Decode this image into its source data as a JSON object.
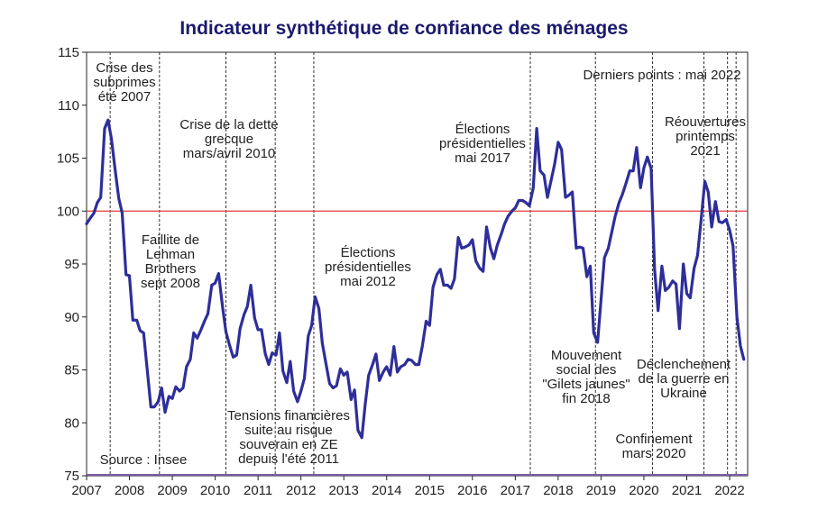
{
  "chart_data": {
    "type": "line",
    "title": "Indicateur synthétique de confiance des ménages",
    "xlabel": "",
    "ylabel": "",
    "xlim": [
      2007.0,
      2022.42
    ],
    "ylim": [
      75,
      115
    ],
    "y_ticks": [
      "75",
      "80",
      "85",
      "90",
      "95",
      "100",
      "105",
      "110",
      "115"
    ],
    "x_ticks": [
      "2007",
      "2008",
      "2009",
      "2010",
      "2011",
      "2012",
      "2013",
      "2014",
      "2015",
      "2016",
      "2017",
      "2018",
      "2019",
      "2020",
      "2021",
      "2022"
    ],
    "grid": false,
    "reference_line": {
      "y": 100,
      "color": "#e03c3c"
    },
    "series": [
      {
        "color": "#2e2e9a",
        "x": [
          2007.0,
          2007.08,
          2007.17,
          2007.25,
          2007.33,
          2007.42,
          2007.5,
          2007.58,
          2007.67,
          2007.75,
          2007.83,
          2007.92,
          2008.0,
          2008.08,
          2008.17,
          2008.25,
          2008.33,
          2008.42,
          2008.5,
          2008.58,
          2008.67,
          2008.75,
          2008.83,
          2008.92,
          2009.0,
          2009.08,
          2009.17,
          2009.25,
          2009.33,
          2009.42,
          2009.5,
          2009.58,
          2009.67,
          2009.75,
          2009.83,
          2009.92,
          2010.0,
          2010.08,
          2010.17,
          2010.25,
          2010.33,
          2010.42,
          2010.5,
          2010.58,
          2010.67,
          2010.75,
          2010.83,
          2010.92,
          2011.0,
          2011.08,
          2011.17,
          2011.25,
          2011.33,
          2011.42,
          2011.5,
          2011.58,
          2011.67,
          2011.75,
          2011.83,
          2011.92,
          2012.0,
          2012.08,
          2012.17,
          2012.25,
          2012.33,
          2012.42,
          2012.5,
          2012.58,
          2012.67,
          2012.75,
          2012.83,
          2012.92,
          2013.0,
          2013.08,
          2013.17,
          2013.25,
          2013.33,
          2013.42,
          2013.5,
          2013.58,
          2013.67,
          2013.75,
          2013.83,
          2013.92,
          2014.0,
          2014.08,
          2014.17,
          2014.25,
          2014.33,
          2014.42,
          2014.5,
          2014.58,
          2014.67,
          2014.75,
          2014.83,
          2014.92,
          2015.0,
          2015.08,
          2015.17,
          2015.25,
          2015.33,
          2015.42,
          2015.5,
          2015.58,
          2015.67,
          2015.75,
          2015.83,
          2015.92,
          2016.0,
          2016.08,
          2016.17,
          2016.25,
          2016.33,
          2016.42,
          2016.5,
          2016.58,
          2016.67,
          2016.75,
          2016.83,
          2016.92,
          2017.0,
          2017.08,
          2017.17,
          2017.25,
          2017.33,
          2017.42,
          2017.5,
          2017.58,
          2017.67,
          2017.75,
          2017.83,
          2017.92,
          2018.0,
          2018.08,
          2018.17,
          2018.25,
          2018.33,
          2018.42,
          2018.5,
          2018.58,
          2018.67,
          2018.75,
          2018.83,
          2018.92,
          2019.0,
          2019.08,
          2019.17,
          2019.25,
          2019.33,
          2019.42,
          2019.5,
          2019.58,
          2019.67,
          2019.75,
          2019.83,
          2019.92,
          2020.0,
          2020.08,
          2020.17,
          2020.25,
          2020.33,
          2020.42,
          2020.5,
          2020.58,
          2020.67,
          2020.75,
          2020.83,
          2020.92,
          2021.0,
          2021.08,
          2021.17,
          2021.25,
          2021.33,
          2021.42,
          2021.5,
          2021.58,
          2021.67,
          2021.75,
          2021.83,
          2021.92,
          2022.0,
          2022.08,
          2022.17,
          2022.25,
          2022.33
        ],
        "y": [
          98.8,
          99.3,
          99.8,
          100.8,
          101.3,
          107.8,
          108.6,
          106.8,
          103.8,
          101.2,
          99.8,
          94.0,
          93.9,
          89.7,
          89.7,
          88.7,
          88.5,
          84.8,
          81.5,
          81.5,
          82.0,
          83.3,
          81.0,
          82.5,
          82.3,
          83.4,
          83.0,
          83.3,
          85.3,
          86.0,
          88.5,
          88.0,
          88.8,
          89.6,
          90.3,
          93.0,
          93.2,
          94.1,
          91.0,
          88.6,
          87.4,
          86.2,
          86.4,
          88.9,
          90.2,
          91.0,
          93.0,
          89.9,
          88.8,
          88.8,
          86.5,
          85.5,
          86.6,
          86.4,
          88.5,
          84.9,
          83.8,
          85.8,
          83.0,
          82.0,
          83.0,
          84.2,
          88.2,
          89.2,
          91.9,
          90.8,
          87.5,
          85.7,
          83.7,
          83.3,
          83.5,
          85.1,
          84.5,
          84.8,
          82.2,
          83.1,
          79.3,
          78.6,
          81.8,
          84.5,
          85.5,
          86.5,
          84.0,
          84.8,
          85.3,
          84.5,
          87.2,
          84.8,
          85.3,
          85.5,
          86.0,
          85.9,
          85.5,
          85.5,
          87.2,
          89.6,
          89.2,
          92.8,
          94.0,
          94.5,
          93.0,
          93.0,
          92.7,
          93.6,
          97.5,
          96.5,
          96.6,
          96.8,
          97.3,
          95.3,
          94.6,
          94.3,
          98.5,
          96.5,
          95.5,
          96.8,
          97.8,
          98.8,
          99.5,
          100.0,
          100.3,
          101.0,
          101.0,
          100.8,
          100.5,
          102.2,
          107.8,
          103.8,
          103.4,
          101.3,
          102.8,
          104.5,
          106.5,
          105.8,
          101.3,
          101.5,
          101.8,
          96.5,
          96.6,
          96.5,
          93.8,
          94.8,
          88.5,
          87.6,
          91.6,
          95.6,
          96.5,
          98.0,
          99.5,
          100.8,
          101.6,
          102.6,
          103.8,
          103.8,
          106.0,
          102.2,
          104.1,
          105.1,
          104.0,
          94.5,
          90.6,
          94.8,
          92.5,
          92.8,
          93.4,
          93.1,
          88.9,
          95.0,
          92.2,
          91.8,
          94.6,
          95.8,
          99.0,
          102.8,
          101.8,
          98.5,
          100.9,
          99.0,
          98.9,
          99.2,
          98.2,
          96.7,
          90.0,
          87.3,
          86.0
        ]
      }
    ],
    "vlines_x": [
      2007.55,
      2008.7,
      2010.25,
      2011.4,
      2012.3,
      2017.35,
      2018.87,
      2020.2,
      2021.4,
      2021.95,
      2022.15
    ],
    "annotations": [
      "Crise des\nsubprimes\nété 2007",
      "Faillite de\nLehman\nBrothers\nsept 2008",
      "Crise de la dette\ngrecque\nmars/avril 2010",
      "Tensions financières\nsuite au risque\nsouverain en ZE\ndepuis l'été 2011",
      "Élections\nprésidentielles\nmai 2012",
      "Élections\nprésidentielles\nmai 2017",
      "Mouvement\nsocial des\n\"Gilets jaunes\"\nfin 2018",
      "Confinement\nmars 2020",
      "Réouvertures\nprintemps\n2021",
      "Déclenchement\nde la guerre en\nUkraine",
      "Derniers points : mai 2022",
      "Source : Insee"
    ]
  }
}
